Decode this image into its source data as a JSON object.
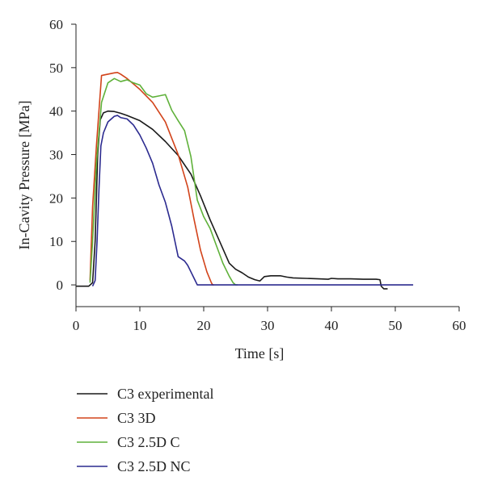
{
  "chart_data": {
    "type": "line",
    "title": "",
    "xlabel": "Time [s]",
    "ylabel": "In-Cavity Pressure [MPa]",
    "xlim": [
      0,
      60
    ],
    "ylim": [
      -5,
      60
    ],
    "xticks": [
      0,
      10,
      20,
      30,
      40,
      50,
      60
    ],
    "yticks": [
      0,
      10,
      20,
      30,
      40,
      50,
      60
    ],
    "grid": false,
    "legend_position": "bottom",
    "series": [
      {
        "name": "C3 experimental",
        "color": "#1a1a1a",
        "x": [
          0,
          2,
          2.6,
          3,
          3.4,
          3.8,
          4.3,
          5,
          6,
          7,
          8,
          10,
          12,
          14,
          16,
          18,
          19.5,
          21,
          22.5,
          24,
          25,
          26,
          27,
          28,
          28.8,
          29.5,
          30.5,
          32,
          33,
          34,
          36,
          38,
          39.5,
          40,
          41,
          43,
          45,
          47,
          47.6,
          47.8,
          48.2,
          48.8
        ],
        "y": [
          -0.3,
          -0.3,
          0.5,
          10,
          30,
          38,
          39.6,
          40,
          39.9,
          39.5,
          39,
          37.8,
          35.8,
          33,
          29.8,
          25.5,
          20.5,
          15,
          10,
          5,
          3.6,
          2.8,
          1.8,
          1.2,
          0.9,
          1.9,
          2.1,
          2.1,
          1.8,
          1.6,
          1.5,
          1.4,
          1.3,
          1.5,
          1.4,
          1.4,
          1.3,
          1.3,
          1.2,
          -0.3,
          -0.9,
          -0.9
        ]
      },
      {
        "name": "C3 3D",
        "color": "#d2431a",
        "x": [
          2.2,
          2.6,
          3.2,
          4,
          5,
          6,
          6.5,
          7,
          8,
          10,
          12,
          14,
          16,
          17.5,
          18.5,
          19.5,
          20.5,
          21.2,
          21.4,
          21.6
        ],
        "y": [
          1,
          18,
          32,
          48.2,
          48.5,
          48.8,
          48.9,
          48.5,
          47.5,
          45,
          42,
          37.5,
          30,
          22.5,
          15,
          8,
          3,
          0.5,
          0,
          0
        ]
      },
      {
        "name": "C3 2.5D C",
        "color": "#5fb13a",
        "x": [
          2.2,
          2.6,
          3.2,
          4,
          5,
          6,
          7,
          8,
          9,
          10,
          11,
          12,
          13,
          14,
          15,
          16,
          17,
          18,
          19,
          20,
          21,
          22,
          23,
          24,
          24.6,
          25,
          25.3
        ],
        "y": [
          0.5,
          10,
          28,
          42,
          46.5,
          47.5,
          46.8,
          47.2,
          46.5,
          46,
          44,
          43.2,
          43.5,
          43.8,
          40.2,
          37.8,
          35.5,
          29.5,
          19.5,
          15.7,
          13,
          9,
          5,
          2,
          0.5,
          0,
          0
        ]
      },
      {
        "name": "C3 2.5D NC",
        "color": "#2b2a8f",
        "x": [
          2.6,
          3,
          3.3,
          3.6,
          3.9,
          4.3,
          5,
          6,
          6.5,
          7,
          8,
          9,
          10,
          11,
          12,
          13,
          14,
          15,
          15.5,
          16,
          17,
          17.5,
          18,
          18.5,
          19,
          21.5,
          22,
          25,
          30,
          40,
          50,
          52.8
        ],
        "y": [
          -0.3,
          1,
          10,
          22,
          32,
          35,
          37.5,
          38.8,
          39,
          38.5,
          38.2,
          36.8,
          34.5,
          31.5,
          28,
          23,
          19,
          13.5,
          10,
          6.5,
          5.5,
          4.5,
          3,
          1.5,
          0,
          0,
          0,
          0,
          0,
          0,
          0,
          0
        ]
      }
    ]
  }
}
